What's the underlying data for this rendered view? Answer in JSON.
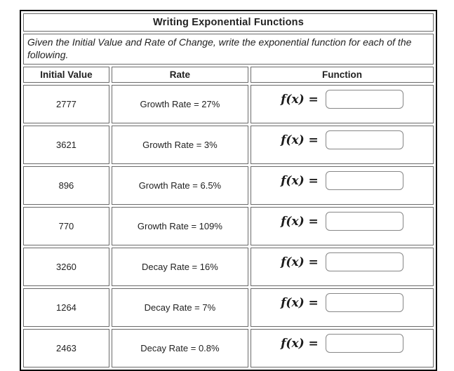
{
  "title": "Writing Exponential Functions",
  "instructions": "Given the Initial Value and Rate of Change, write the exponential function for each of the following.",
  "columns": [
    "Initial Value",
    "Rate",
    "Function"
  ],
  "function_label": "f(x) =",
  "rows": [
    {
      "initial_value": "2777",
      "rate": "Growth Rate = 27%",
      "input_value": ""
    },
    {
      "initial_value": "3621",
      "rate": "Growth Rate = 3%",
      "input_value": ""
    },
    {
      "initial_value": "896",
      "rate": "Growth Rate = 6.5%",
      "input_value": ""
    },
    {
      "initial_value": "770",
      "rate": "Growth Rate = 109%",
      "input_value": ""
    },
    {
      "initial_value": "3260",
      "rate": "Decay Rate = 16%",
      "input_value": ""
    },
    {
      "initial_value": "1264",
      "rate": "Decay Rate = 7%",
      "input_value": ""
    },
    {
      "initial_value": "2463",
      "rate": "Decay Rate = 0.8%",
      "input_value": ""
    }
  ],
  "colors": {
    "outer_border": "#0a0a0a",
    "cell_border": "#6a6a6a",
    "input_border": "#878787",
    "text": "#222222",
    "background": "#ffffff"
  }
}
